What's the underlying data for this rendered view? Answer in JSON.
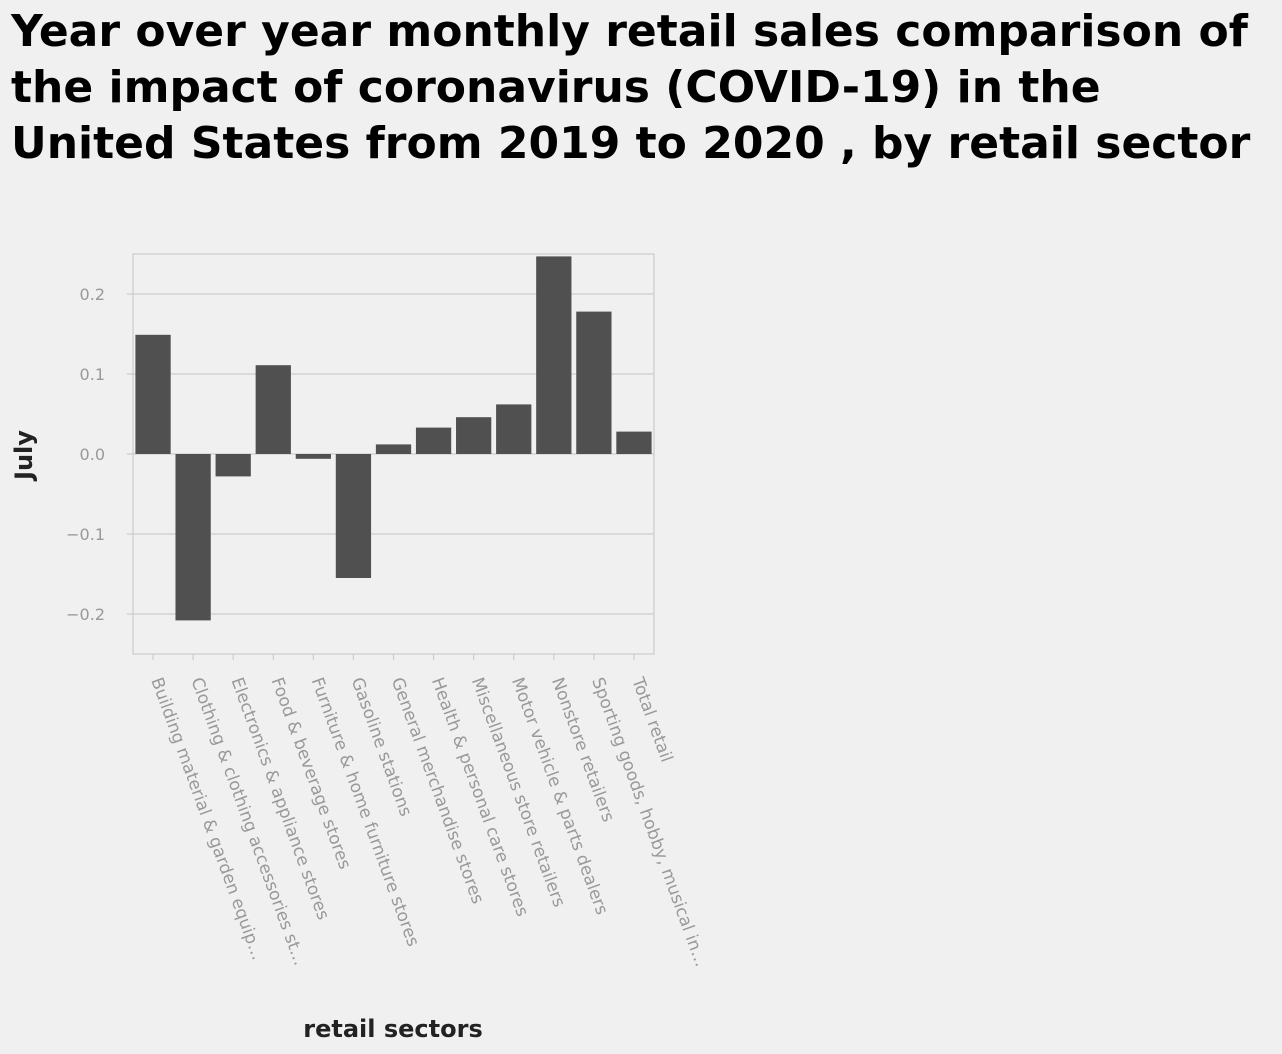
{
  "chart_data": {
    "type": "bar",
    "title": "Year over year monthly retail sales comparison of the impact of coronavirus (COVID-19) in the United States from 2019 to 2020 , by retail sector",
    "xlabel": "retail sectors",
    "ylabel": "July",
    "ylim": [
      -0.25,
      0.25
    ],
    "yticks": [
      -0.2,
      -0.1,
      0.0,
      0.1,
      0.2
    ],
    "ytick_labels": [
      "−0.2",
      "−0.1",
      "0.0",
      "0.1",
      "0.2"
    ],
    "grid": true,
    "categories": [
      "Building material & garden equip…",
      "Clothing & clothing accessories  st…",
      "Electronics & appliance stores",
      "Food & beverage stores",
      "Furniture & home furniture stores",
      "Gasoline stations",
      "General merchandise stores",
      "Health & personal care stores",
      "Miscellaneous store retailers",
      "Motor vehicle & parts dealers",
      "Nonstore retailers",
      "Sporting goods, hobby, musical in…",
      "Total retail"
    ],
    "values": [
      0.149,
      -0.208,
      -0.028,
      0.111,
      -0.006,
      -0.155,
      0.012,
      0.033,
      0.046,
      0.062,
      0.247,
      0.178,
      0.028
    ],
    "colors": {
      "bar": "#505050",
      "grid": "#cccccc",
      "axis": "#cccccc",
      "background": "#f0f0f0"
    }
  }
}
